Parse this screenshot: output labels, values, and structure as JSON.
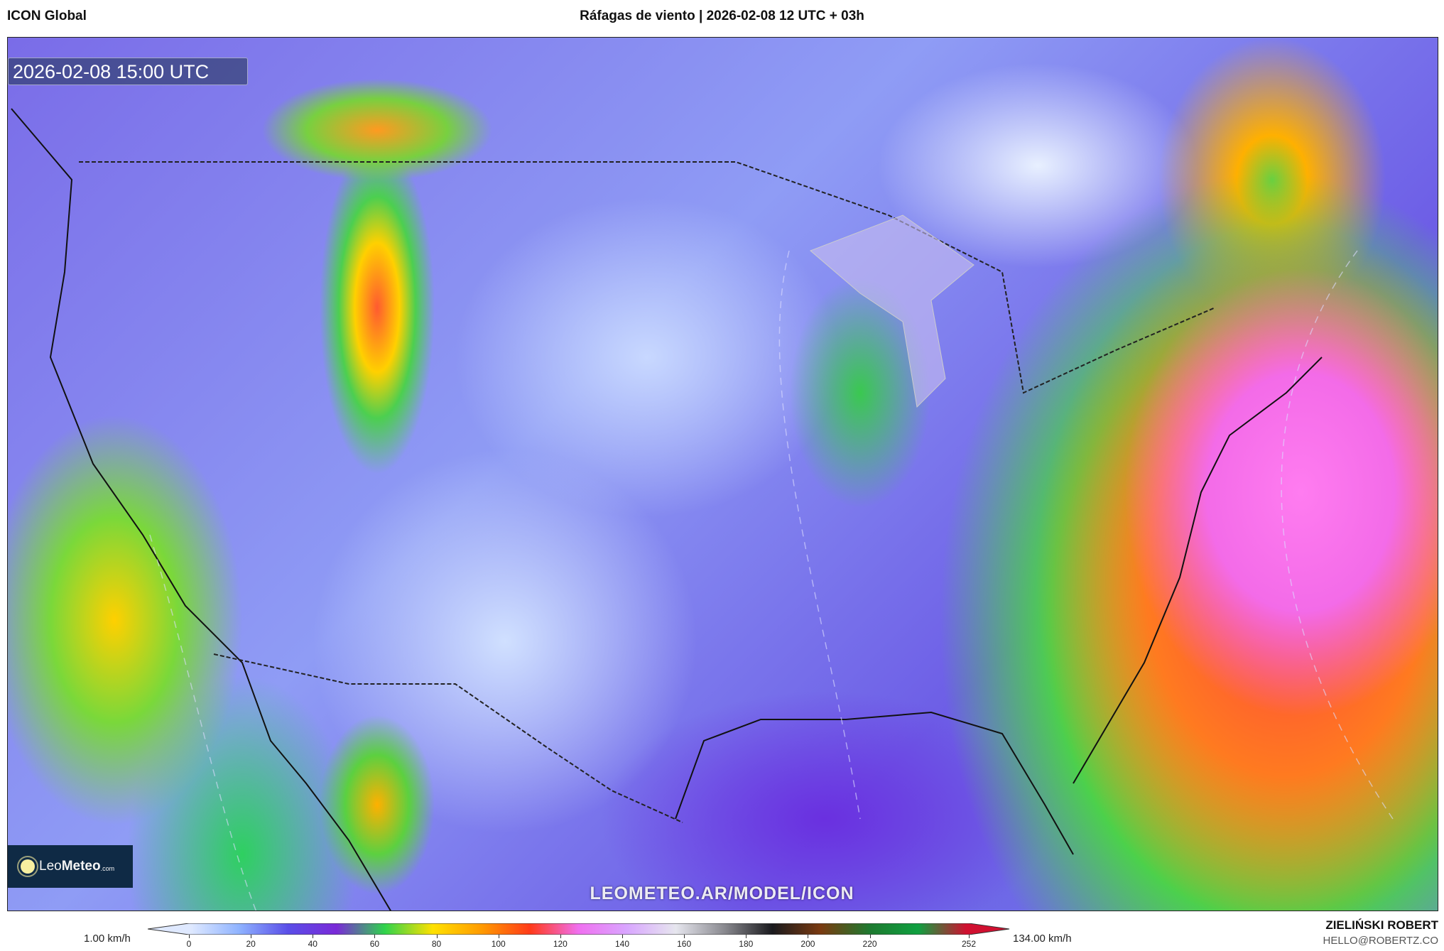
{
  "header": {
    "model": "ICON Global",
    "title": "Ráfagas de viento | 2026-02-08 12 UTC + 03h"
  },
  "map": {
    "valid_time": "2026-02-08 15:00 UTC",
    "watermark": "LEOMETEO.AR/MODEL/ICON",
    "logo": {
      "part1": "Leo",
      "part2": "Meteo",
      "part3": ".com",
      "icon": "sun-icon"
    }
  },
  "colorbar": {
    "min_label": "1.00 km/h",
    "max_label": "134.00 km/h",
    "ticks": [
      "0",
      "20",
      "40",
      "60",
      "80",
      "100",
      "120",
      "140",
      "160",
      "180",
      "200",
      "220",
      "252"
    ],
    "colors": [
      "#dfe9ff",
      "#8fb3ff",
      "#5a4ee8",
      "#7a2ad8",
      "#2fd34c",
      "#ffe100",
      "#ff9a00",
      "#ff3a1a",
      "#f070f0",
      "#d9a6ff",
      "#e6e6ee",
      "#8a8a90",
      "#1a1a1e",
      "#7a3a10",
      "#1e7a30",
      "#0fa040",
      "#d01030"
    ]
  },
  "footer": {
    "author": "ZIELIŃSKI ROBERT",
    "email": "HELLO@ROBERTZ.CO"
  }
}
